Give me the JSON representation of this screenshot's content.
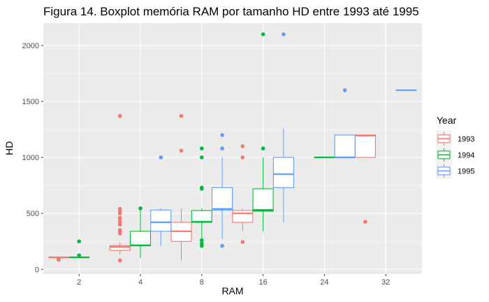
{
  "chart_data": {
    "type": "boxplot",
    "title": "Figura 14.  Boxplot memória RAM por tamanho HD entre 1993 até 1995",
    "xlabel": "RAM",
    "ylabel": "HD",
    "categories": [
      "2",
      "4",
      "8",
      "16",
      "24",
      "32"
    ],
    "y_ticks": [
      "0",
      "500",
      "1000",
      "1500",
      "2000"
    ],
    "ylim": [
      0,
      2200
    ],
    "grid": true,
    "legend": {
      "title": "Year",
      "position": "right",
      "entries": [
        "1993",
        "1994",
        "1995"
      ]
    },
    "series": [
      {
        "name": "1993",
        "color": "#F8766D",
        "boxes": [
          {
            "category": "2",
            "min": 107,
            "q1": 107,
            "median": 107,
            "q3": 107,
            "max": 107,
            "outliers": [
              85,
              90
            ]
          },
          {
            "category": "4",
            "min": 130,
            "q1": 170,
            "median": 200,
            "q3": 212,
            "max": 240,
            "outliers": [
              80,
              320,
              340,
              350,
              400,
              420,
              440,
              460,
              500,
              520,
              540,
              1370
            ]
          },
          {
            "category": "8",
            "min": 80,
            "q1": 250,
            "median": 340,
            "q3": 420,
            "max": 540,
            "outliers": [
              1060,
              1370
            ]
          },
          {
            "category": "16",
            "min": 340,
            "q1": 420,
            "median": 500,
            "q3": 525,
            "max": 540,
            "outliers": [
              245,
              1000,
              1100
            ]
          },
          {
            "category": "32",
            "min": 1000,
            "q1": 1000,
            "median": 1195,
            "q3": 1200,
            "max": 1200,
            "outliers": [
              425
            ]
          }
        ]
      },
      {
        "name": "1994",
        "color": "#00BA38",
        "boxes": [
          {
            "category": "2",
            "min": 107,
            "q1": 107,
            "median": 107,
            "q3": 107,
            "max": 107,
            "outliers": [
              125,
              250
            ]
          },
          {
            "category": "4",
            "min": 100,
            "q1": 210,
            "median": 215,
            "q3": 340,
            "max": 540,
            "outliers": [
              545
            ]
          },
          {
            "category": "8",
            "min": 270,
            "q1": 420,
            "median": 425,
            "q3": 525,
            "max": 545,
            "outliers": [
              210,
              230,
              260,
              720,
              730,
              1000,
              1080
            ]
          },
          {
            "category": "16",
            "min": 340,
            "q1": 520,
            "median": 530,
            "q3": 720,
            "max": 1000,
            "outliers": [
              1080,
              2100
            ]
          },
          {
            "category": "24",
            "min": 1000,
            "q1": 1000,
            "median": 1000,
            "q3": 1000,
            "max": 1000,
            "outliers": []
          }
        ]
      },
      {
        "name": "1995",
        "color": "#619CFF",
        "boxes": [
          {
            "category": "4",
            "min": 210,
            "q1": 340,
            "median": 420,
            "q3": 530,
            "max": 545,
            "outliers": [
              1000
            ]
          },
          {
            "category": "8",
            "min": 270,
            "q1": 530,
            "median": 540,
            "q3": 730,
            "max": 1000,
            "outliers": [
              210,
              1080,
              1200
            ]
          },
          {
            "category": "16",
            "min": 420,
            "q1": 730,
            "median": 850,
            "q3": 1000,
            "max": 1260,
            "outliers": [
              2100
            ]
          },
          {
            "category": "24",
            "min": 1000,
            "q1": 1000,
            "median": 1000,
            "q3": 1200,
            "max": 1200,
            "outliers": [
              1600
            ]
          },
          {
            "category": "32",
            "min": 1600,
            "q1": 1600,
            "median": 1600,
            "q3": 1600,
            "max": 1600,
            "outliers": []
          }
        ]
      }
    ]
  }
}
